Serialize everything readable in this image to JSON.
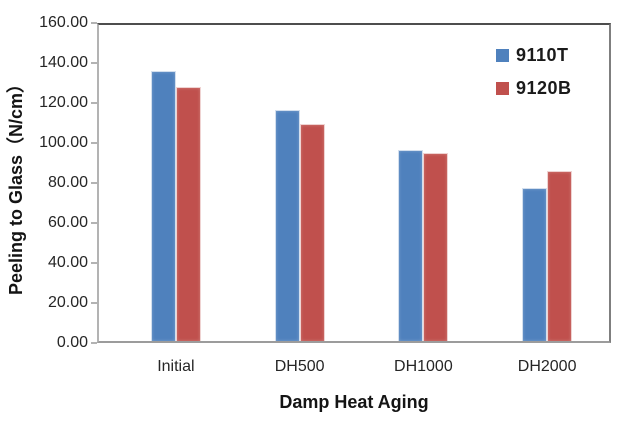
{
  "chart_data": {
    "type": "bar",
    "title": "",
    "categories": [
      "Initial",
      "DH500",
      "DH1000",
      "DH2000"
    ],
    "series": [
      {
        "name": "9110T",
        "color": "#4F81BD",
        "values": [
          136.5,
          117.0,
          96.5,
          77.5
        ]
      },
      {
        "name": "9120B",
        "color": "#C0504D",
        "values": [
          128.5,
          110.0,
          95.0,
          86.0
        ]
      }
    ],
    "xlabel": "Damp Heat Aging",
    "ylabel": "Peeling to Glass（N/cm）",
    "ylim": [
      0,
      160
    ],
    "ytick_step": 20,
    "ytick_labels": [
      "0.00",
      "20.00",
      "40.00",
      "60.00",
      "80.00",
      "100.00",
      "120.00",
      "140.00",
      "160.00"
    ],
    "grid": false,
    "legend_position": "top-right-inside",
    "colors": {
      "plot_border_dark": "#4d4d4d",
      "axis_line_light": "#b3b3b3",
      "text": "#262626"
    }
  }
}
